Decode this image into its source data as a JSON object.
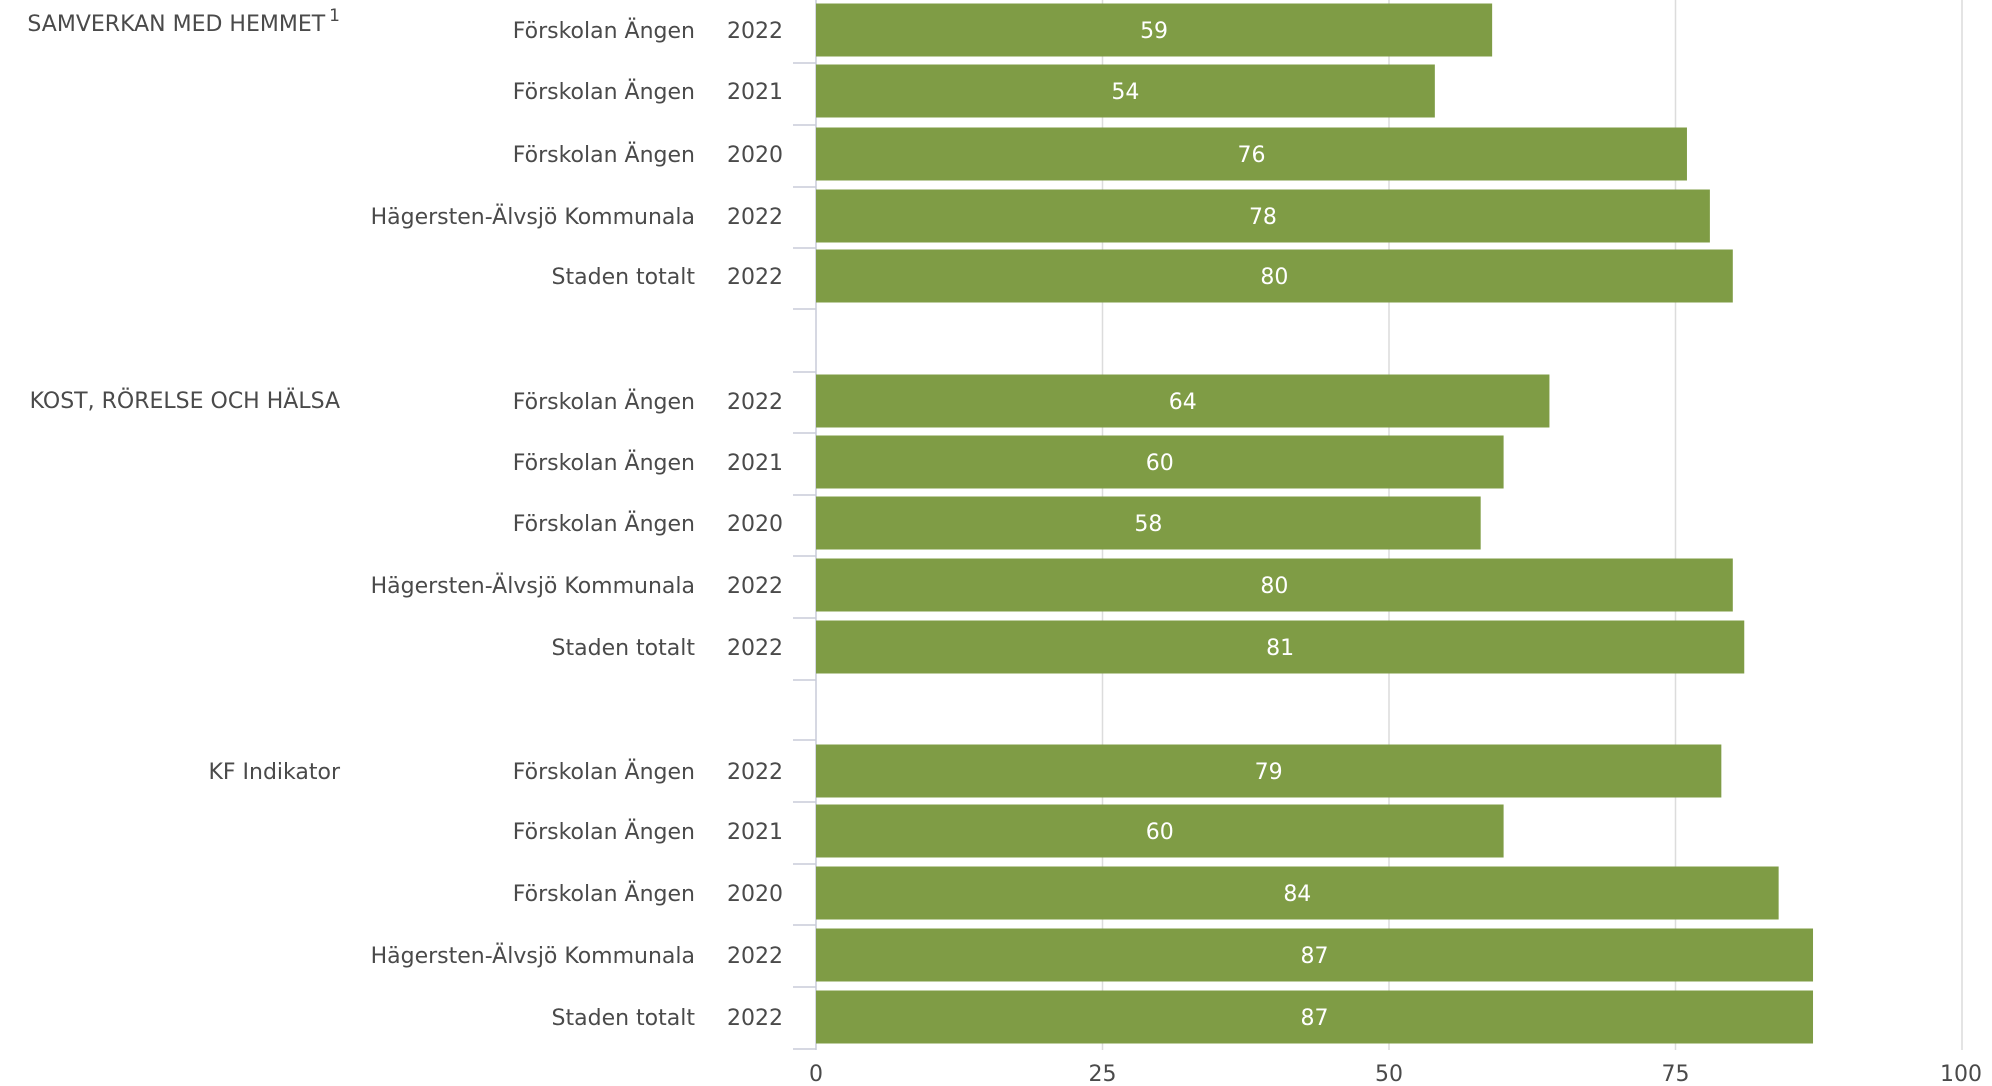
{
  "chart_data": {
    "type": "bar",
    "orientation": "horizontal",
    "xlim": [
      0,
      100
    ],
    "ticks": [
      0,
      25,
      50,
      75,
      100
    ],
    "grid": true,
    "bar_color": "#7f9c45",
    "groups": [
      {
        "title": "SAMVERKAN MED HEMMET",
        "superscript": "1",
        "rows": [
          {
            "label": "Förskolan Ängen",
            "year": "2022",
            "value": 59
          },
          {
            "label": "Förskolan Ängen",
            "year": "2021",
            "value": 54
          },
          {
            "label": "Förskolan Ängen",
            "year": "2020",
            "value": 76
          },
          {
            "label": "Hägersten-Älvsjö Kommunala",
            "year": "2022",
            "value": 78
          },
          {
            "label": "Staden totalt",
            "year": "2022",
            "value": 80
          }
        ]
      },
      {
        "title": "KOST, RÖRELSE OCH HÄLSA",
        "superscript": "",
        "rows": [
          {
            "label": "Förskolan Ängen",
            "year": "2022",
            "value": 64
          },
          {
            "label": "Förskolan Ängen",
            "year": "2021",
            "value": 60
          },
          {
            "label": "Förskolan Ängen",
            "year": "2020",
            "value": 58
          },
          {
            "label": "Hägersten-Älvsjö Kommunala",
            "year": "2022",
            "value": 80
          },
          {
            "label": "Staden totalt",
            "year": "2022",
            "value": 81
          }
        ]
      },
      {
        "title": "KF Indikator",
        "superscript": "",
        "rows": [
          {
            "label": "Förskolan Ängen",
            "year": "2022",
            "value": 79
          },
          {
            "label": "Förskolan Ängen",
            "year": "2021",
            "value": 60
          },
          {
            "label": "Förskolan Ängen",
            "year": "2020",
            "value": 84
          },
          {
            "label": "Hägersten-Älvsjö Kommunala",
            "year": "2022",
            "value": 87
          },
          {
            "label": "Staden totalt",
            "year": "2022",
            "value": 87
          }
        ]
      }
    ]
  }
}
